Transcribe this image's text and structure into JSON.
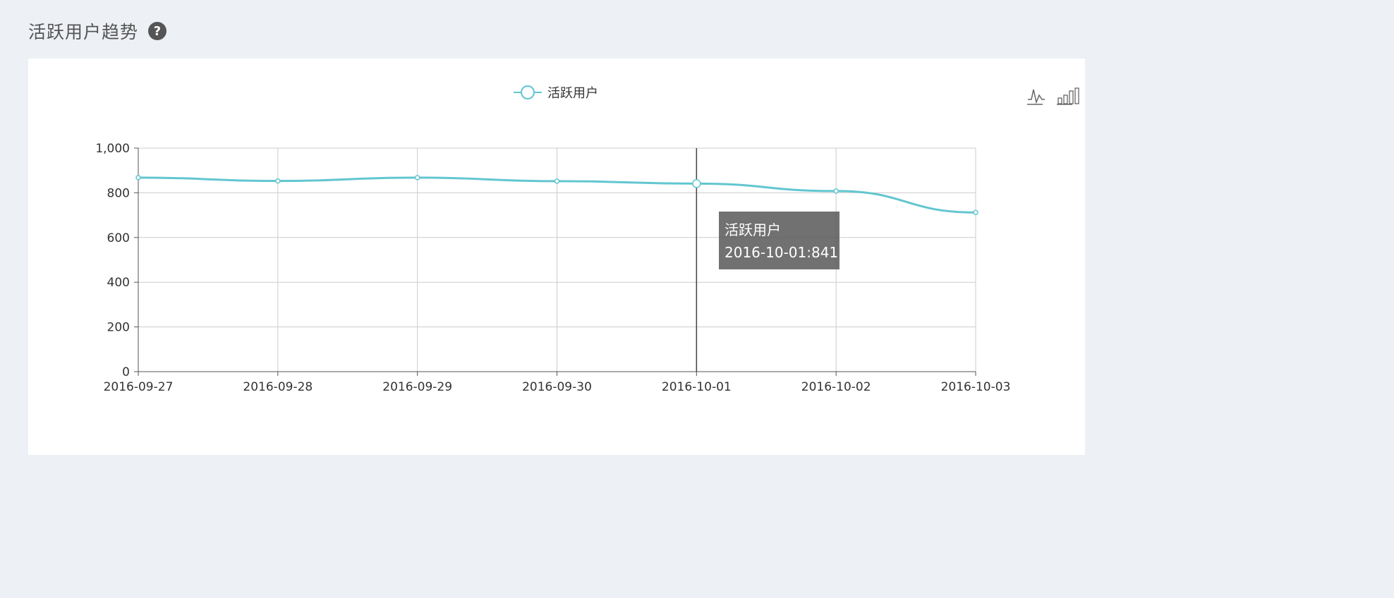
{
  "header": {
    "title": "活跃用户趋势",
    "help_icon": "question-circle-icon"
  },
  "toolbox": {
    "icons": [
      "line-chart-icon",
      "bar-chart-icon"
    ]
  },
  "tooltip": {
    "series": "活跃用户",
    "text": "2016-10-01:841"
  },
  "colors": {
    "series": "#62c6d0",
    "axis": "#555555",
    "grid": "#cccccc",
    "background": "#edf0f5"
  },
  "chart_data": {
    "type": "line",
    "title": "",
    "xlabel": "",
    "ylabel": "",
    "categories": [
      "2016-09-27",
      "2016-09-28",
      "2016-09-29",
      "2016-09-30",
      "2016-10-01",
      "2016-10-02",
      "2016-10-03"
    ],
    "series": [
      {
        "name": "活跃用户",
        "values": [
          868,
          853,
          868,
          852,
          841,
          808,
          712
        ]
      }
    ],
    "ylim": [
      0,
      1000
    ],
    "yticks": [
      "0",
      "200",
      "400",
      "600",
      "800",
      "1,000"
    ],
    "grid": true,
    "legend": "top-center",
    "highlighted_category": "2016-10-01"
  }
}
